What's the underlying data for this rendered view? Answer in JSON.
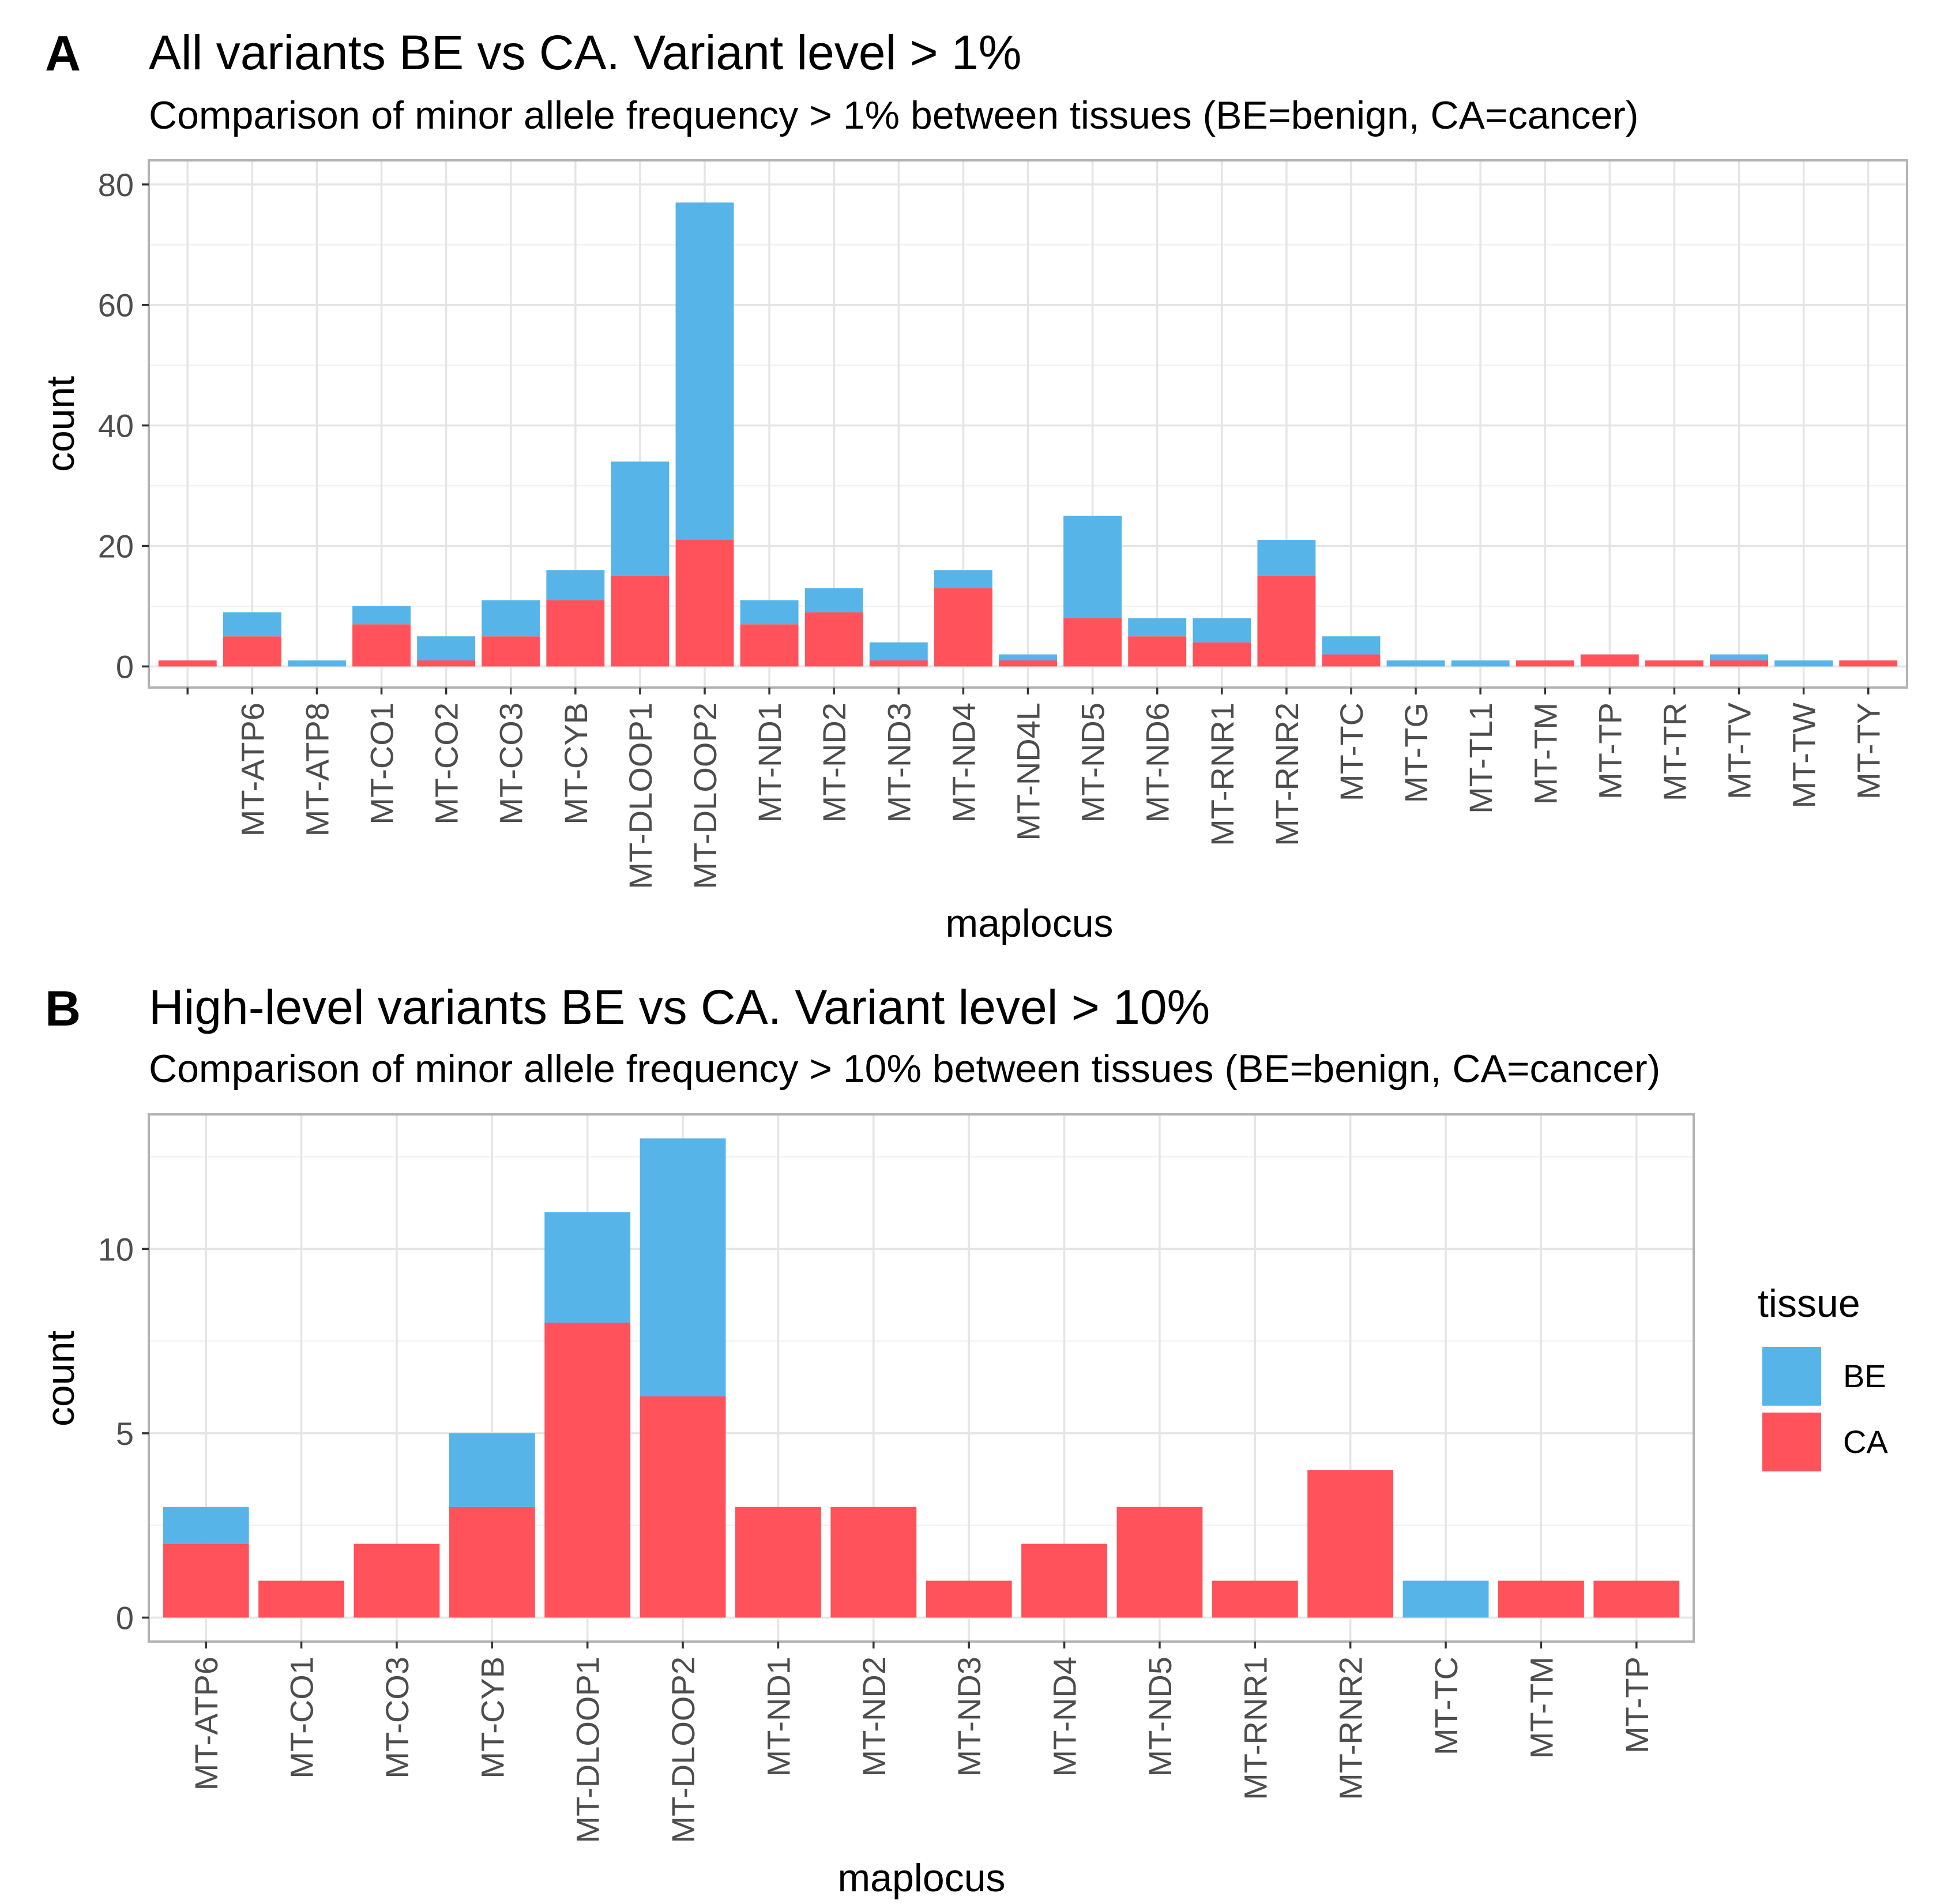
{
  "colors": {
    "BE": "#56B4E9",
    "CA": "#FF525B",
    "grid": "#e5e5e5",
    "panel_border": "#b3b3b3",
    "tick": "#4d4d4d"
  },
  "legend": {
    "title": "tissue",
    "items": [
      {
        "key": "BE",
        "label": "BE"
      },
      {
        "key": "CA",
        "label": "CA"
      }
    ]
  },
  "chart_data": [
    {
      "panel": "A",
      "type": "bar",
      "stacked": true,
      "title": "All variants BE vs CA. Variant level > 1%",
      "subtitle": "Comparison of minor allele frequency > 1% between tissues (BE=benign, CA=cancer)",
      "xlabel": "maplocus",
      "ylabel": "count",
      "ylim": [
        -3.5,
        84
      ],
      "yticks": [
        0,
        20,
        40,
        60,
        80
      ],
      "grid": true,
      "categories": [
        "",
        "MT-ATP6",
        "MT-ATP8",
        "MT-CO1",
        "MT-CO2",
        "MT-CO3",
        "MT-CYB",
        "MT-DLOOP1",
        "MT-DLOOP2",
        "MT-ND1",
        "MT-ND2",
        "MT-ND3",
        "MT-ND4",
        "MT-ND4L",
        "MT-ND5",
        "MT-ND6",
        "MT-RNR1",
        "MT-RNR2",
        "MT-TC",
        "MT-TG",
        "MT-TL1",
        "MT-TM",
        "MT-TP",
        "MT-TR",
        "MT-TV",
        "MT-TW",
        "MT-TY"
      ],
      "series": [
        {
          "name": "CA",
          "values": [
            1,
            5,
            0,
            7,
            1,
            5,
            11,
            15,
            21,
            7,
            9,
            1,
            13,
            1,
            8,
            5,
            4,
            15,
            2,
            0,
            0,
            1,
            2,
            1,
            1,
            0,
            1
          ]
        },
        {
          "name": "BE",
          "values": [
            0,
            4,
            1,
            3,
            4,
            6,
            5,
            19,
            56,
            4,
            4,
            3,
            3,
            1,
            17,
            3,
            4,
            6,
            3,
            1,
            1,
            0,
            0,
            0,
            1,
            1,
            0
          ]
        }
      ]
    },
    {
      "panel": "B",
      "type": "bar",
      "stacked": true,
      "title": "High-level variants BE vs CA. Variant level > 10%",
      "subtitle": "Comparison of minor allele frequency > 10% between tissues (BE=benign, CA=cancer)",
      "xlabel": "maplocus",
      "ylabel": "count",
      "ylim": [
        -0.65,
        13.65
      ],
      "yticks": [
        0,
        5,
        10
      ],
      "grid": true,
      "legend_position": "right",
      "categories": [
        "MT-ATP6",
        "MT-CO1",
        "MT-CO3",
        "MT-CYB",
        "MT-DLOOP1",
        "MT-DLOOP2",
        "MT-ND1",
        "MT-ND2",
        "MT-ND3",
        "MT-ND4",
        "MT-ND5",
        "MT-RNR1",
        "MT-RNR2",
        "MT-TC",
        "MT-TM",
        "MT-TP"
      ],
      "series": [
        {
          "name": "CA",
          "values": [
            2,
            1,
            2,
            3,
            8,
            6,
            3,
            3,
            1,
            2,
            3,
            1,
            4,
            0,
            1,
            1
          ]
        },
        {
          "name": "BE",
          "values": [
            1,
            0,
            0,
            2,
            3,
            7,
            0,
            0,
            0,
            0,
            0,
            0,
            0,
            1,
            0,
            0
          ]
        }
      ]
    }
  ]
}
